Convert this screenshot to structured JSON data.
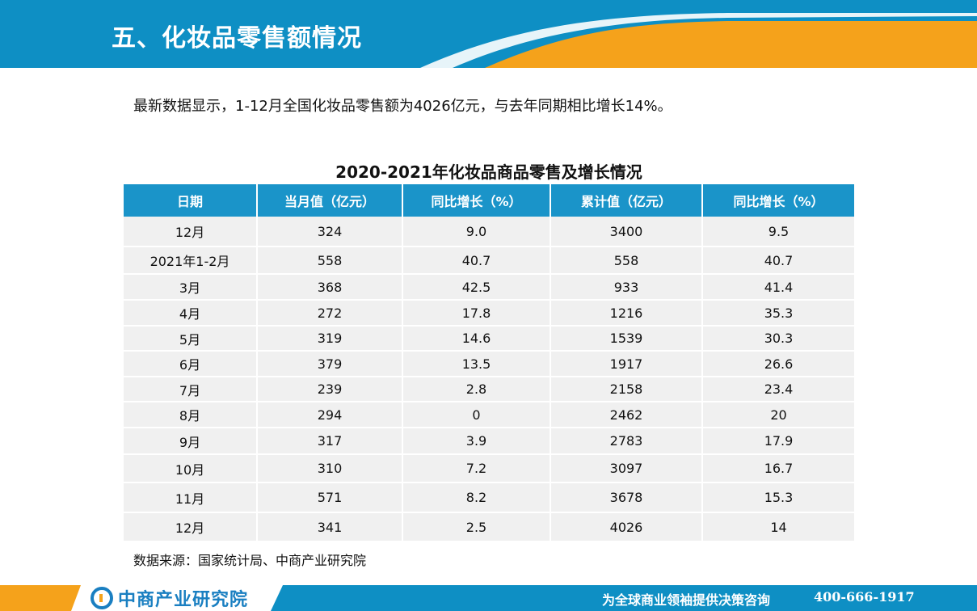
{
  "header": {
    "title": "五、化妆品零售额情况",
    "colors": {
      "blue": "#0e8fc4",
      "orange": "#f5a21b"
    }
  },
  "summary": "最新数据显示，1-12月全国化妆品零售额为4026亿元，与去年同期相比增长14%。",
  "table": {
    "title": "2020-2021年化妆品商品零售及增长情况",
    "columns": [
      "日期",
      "当月值（亿元）",
      "同比增长（%）",
      "累计值（亿元）",
      "同比增长（%）"
    ],
    "rows": [
      [
        "12月",
        "324",
        "9.0",
        "3400",
        "9.5"
      ],
      [
        "2021年1-2月",
        "558",
        "40.7",
        "558",
        "40.7"
      ],
      [
        "3月",
        "368",
        "42.5",
        "933",
        "41.4"
      ],
      [
        "4月",
        "272",
        "17.8",
        "1216",
        "35.3"
      ],
      [
        "5月",
        "319",
        "14.6",
        "1539",
        "30.3"
      ],
      [
        "6月",
        "379",
        "13.5",
        "1917",
        "26.6"
      ],
      [
        "7月",
        "239",
        "2.8",
        "2158",
        "23.4"
      ],
      [
        "8月",
        "294",
        "0",
        "2462",
        "20"
      ],
      [
        "9月",
        "317",
        "3.9",
        "2783",
        "17.9"
      ],
      [
        "10月",
        "310",
        "7.2",
        "3097",
        "16.7"
      ],
      [
        "11月",
        "571",
        "8.2",
        "3678",
        "15.3"
      ],
      [
        "12月",
        "341",
        "2.5",
        "4026",
        "14"
      ]
    ]
  },
  "source": "数据来源：国家统计局、中商产业研究院",
  "footer": {
    "logo_text": "中商产业研究院",
    "slogan": "为全球商业领袖提供决策咨询",
    "phone": "400-666-1917",
    "logo_icon": "company-logo-icon"
  }
}
